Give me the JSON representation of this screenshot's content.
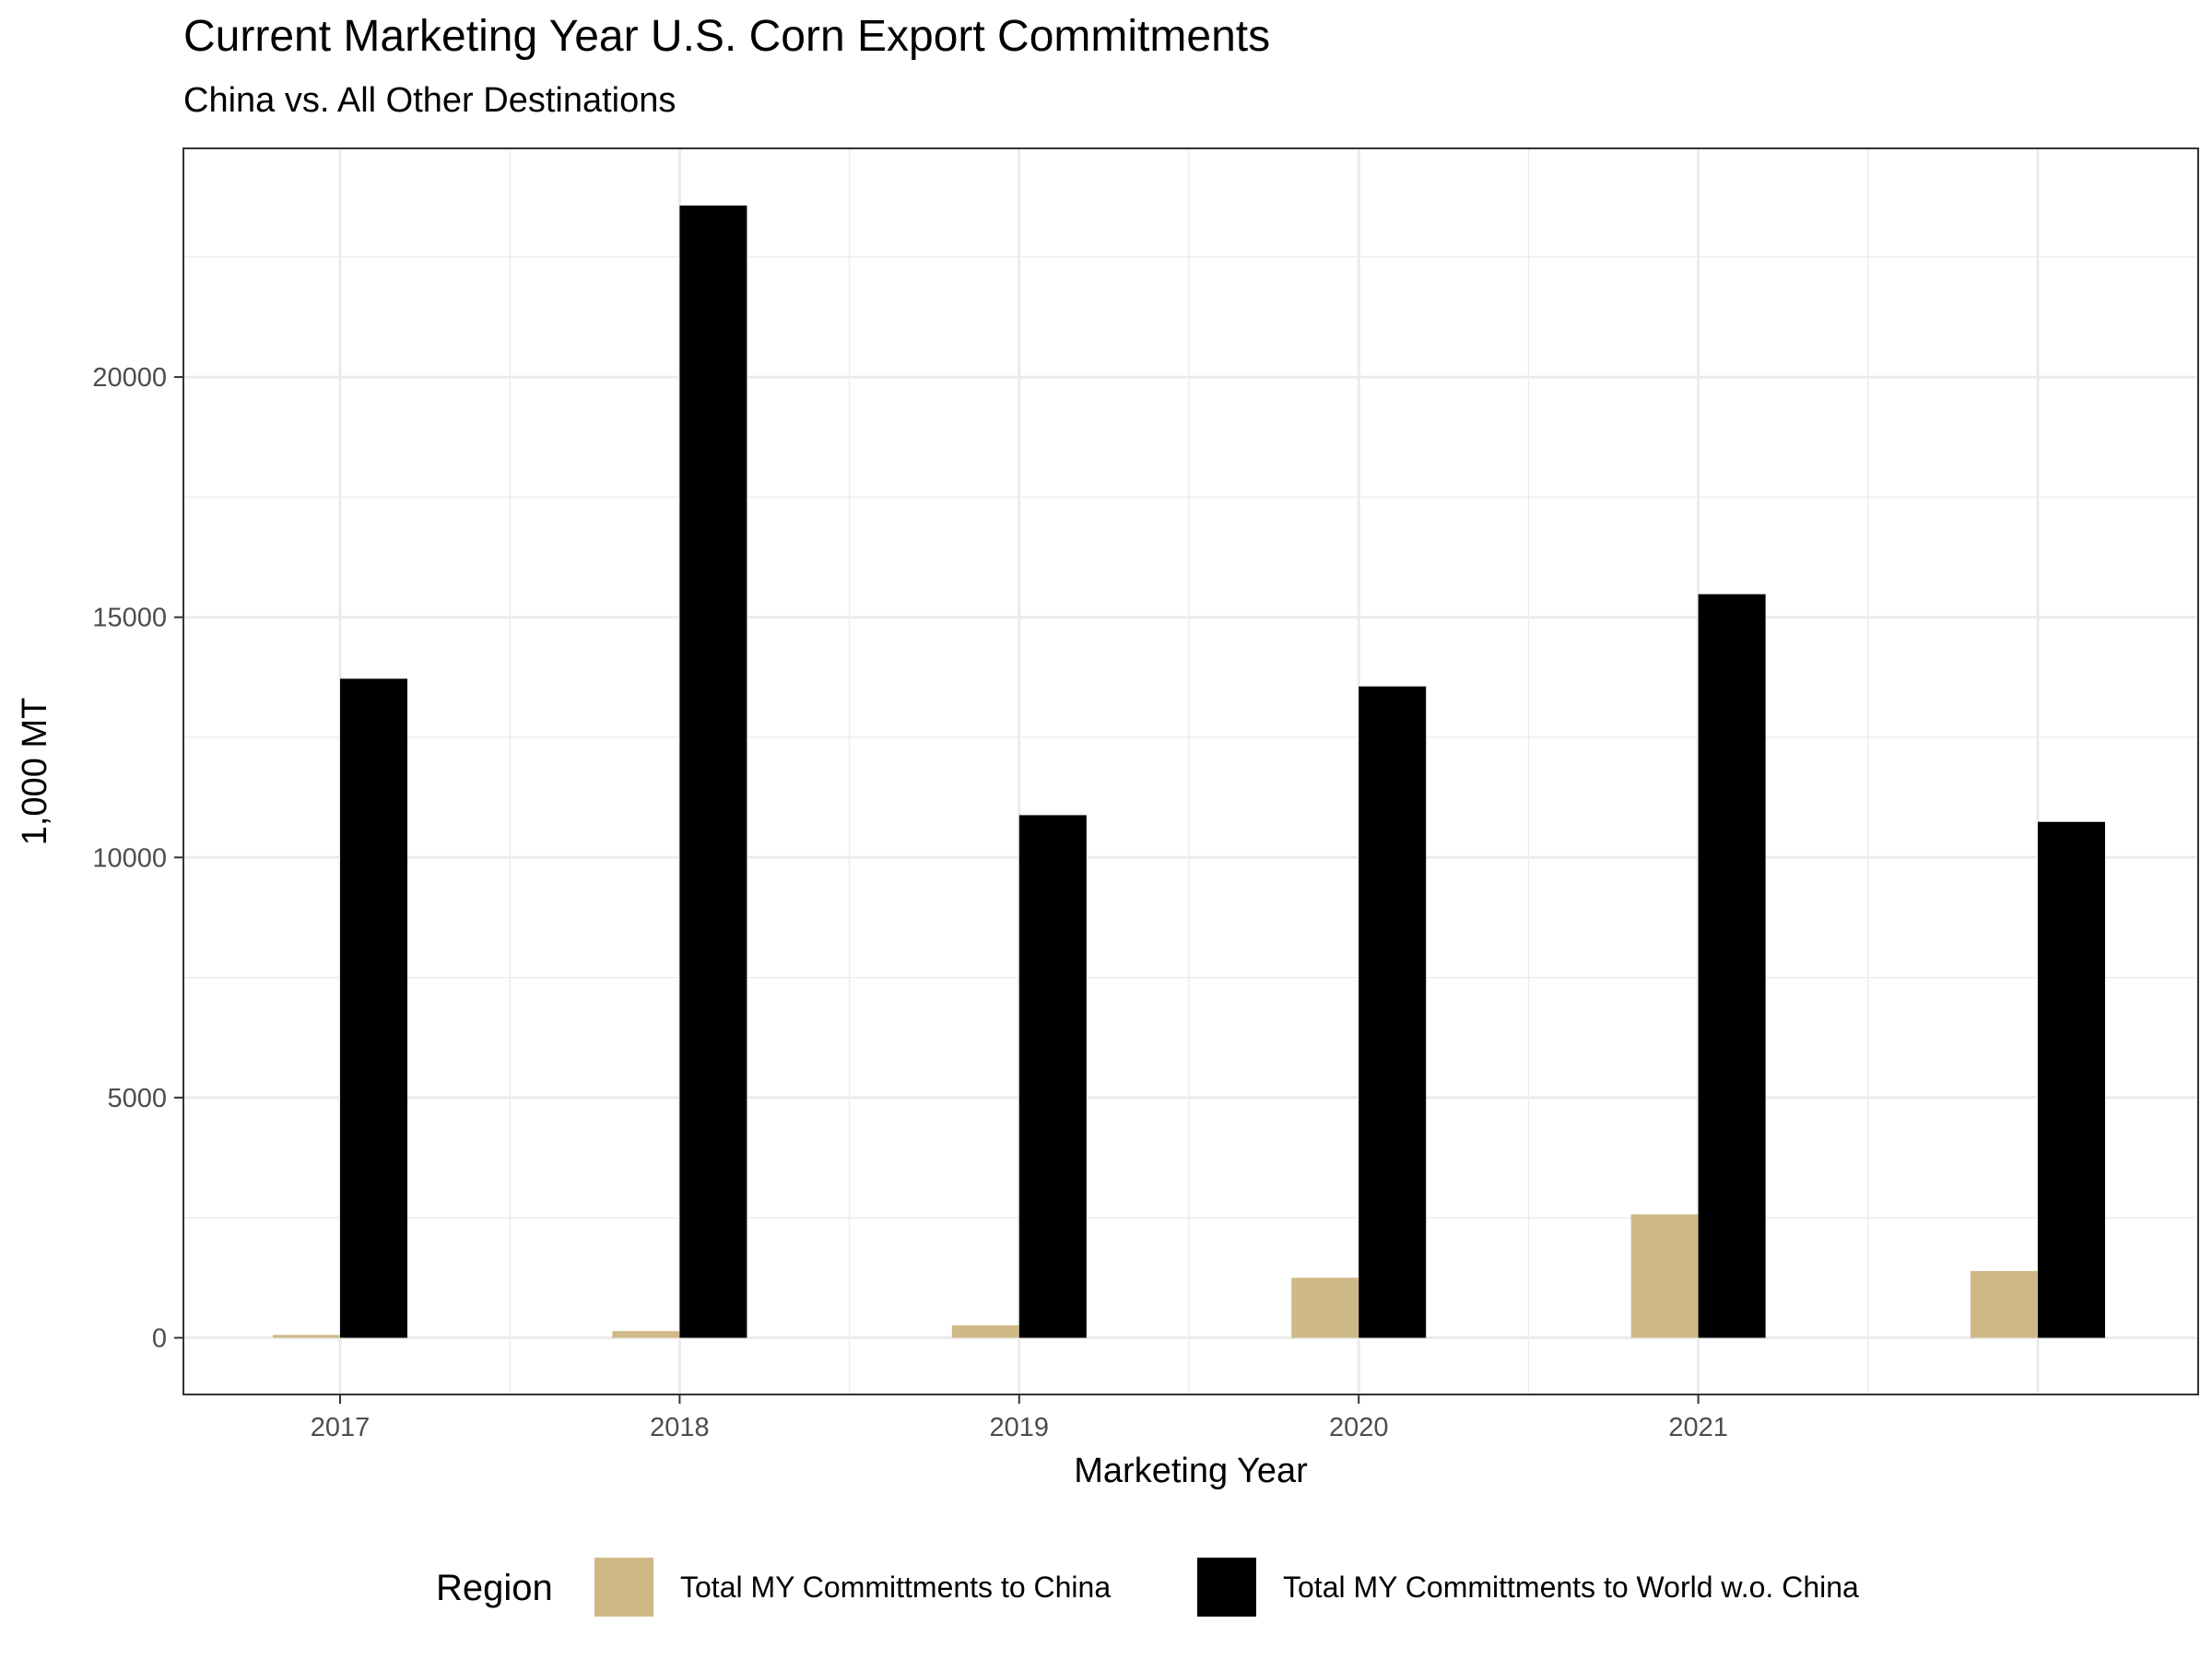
{
  "chart_data": {
    "type": "bar",
    "title": "Current Marketing Year U.S. Corn Export Commitments",
    "subtitle": "China vs. All Other Destinations",
    "xlabel": "Marketing Year",
    "ylabel": "1,000 MT",
    "categories": [
      "2017",
      "2018",
      "2019",
      "2020",
      "2021",
      ""
    ],
    "series": [
      {
        "name": "Total MY Committments to China",
        "color": "#cfb987",
        "values": [
          60,
          140,
          260,
          1250,
          2570,
          1390
        ]
      },
      {
        "name": "Total MY Committments to World w.o. China",
        "color": "#000000",
        "values": [
          13720,
          23570,
          10880,
          13560,
          15480,
          10740
        ]
      }
    ],
    "ylim": [
      -1180,
      24760
    ],
    "y_ticks": [
      0,
      5000,
      10000,
      15000,
      20000
    ],
    "y_tick_labels": [
      "0",
      "5000",
      "10000",
      "15000",
      "20000"
    ],
    "grid": true,
    "legend": {
      "title": "Region",
      "position": "bottom"
    }
  }
}
